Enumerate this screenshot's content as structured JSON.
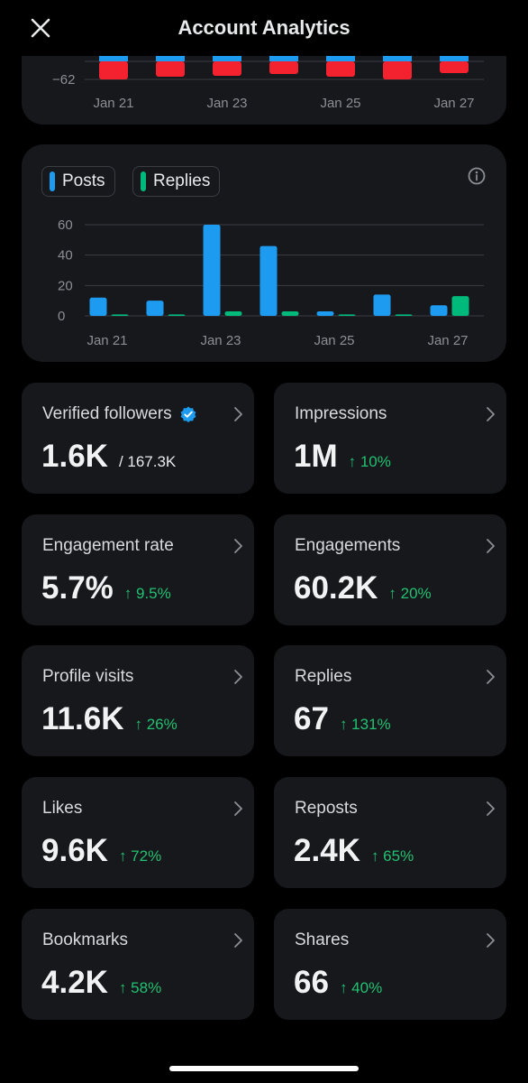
{
  "header": {
    "title": "Account Analytics"
  },
  "top_chart": {
    "y_tick": "−62",
    "x_labels": [
      "Jan 21",
      "Jan 23",
      "Jan 25",
      "Jan 27"
    ],
    "blue_color": "#1d9bf0",
    "red_color": "#f4212e"
  },
  "chart_data": {
    "type": "bar",
    "categories": [
      "Jan 21",
      "Jan 22",
      "Jan 23",
      "Jan 24",
      "Jan 25",
      "Jan 26",
      "Jan 27"
    ],
    "x_tick_labels": [
      "Jan 21",
      "Jan 23",
      "Jan 25",
      "Jan 27"
    ],
    "ylim": [
      0,
      60
    ],
    "y_ticks": [
      0,
      20,
      40,
      60
    ],
    "grid": true,
    "legend": "top-left",
    "series": [
      {
        "name": "Posts",
        "color": "#1d9bf0",
        "values": [
          12,
          10,
          60,
          46,
          3,
          14,
          7
        ]
      },
      {
        "name": "Replies",
        "color": "#00ba7c",
        "values": [
          1,
          1,
          3,
          3,
          1,
          1,
          13
        ]
      }
    ]
  },
  "stats": [
    {
      "label": "Verified followers",
      "value": "1.6K",
      "total": "/ 167.3K"
    },
    {
      "label": "Impressions",
      "value": "1M",
      "change": "↑ 10%"
    },
    {
      "label": "Engagement rate",
      "value": "5.7%",
      "change": "↑ 9.5%"
    },
    {
      "label": "Engagements",
      "value": "60.2K",
      "change": "↑ 20%"
    },
    {
      "label": "Profile visits",
      "value": "11.6K",
      "change": "↑ 26%"
    },
    {
      "label": "Replies",
      "value": "67",
      "change": "↑ 131%"
    },
    {
      "label": "Likes",
      "value": "9.6K",
      "change": "↑ 72%"
    },
    {
      "label": "Reposts",
      "value": "2.4K",
      "change": "↑ 65%"
    },
    {
      "label": "Bookmarks",
      "value": "4.2K",
      "change": "↑ 58%"
    },
    {
      "label": "Shares",
      "value": "66",
      "change": "↑ 40%"
    }
  ],
  "colors": {
    "positive": "#22c171",
    "verified": "#1d9bf0",
    "card": "#16181c"
  }
}
